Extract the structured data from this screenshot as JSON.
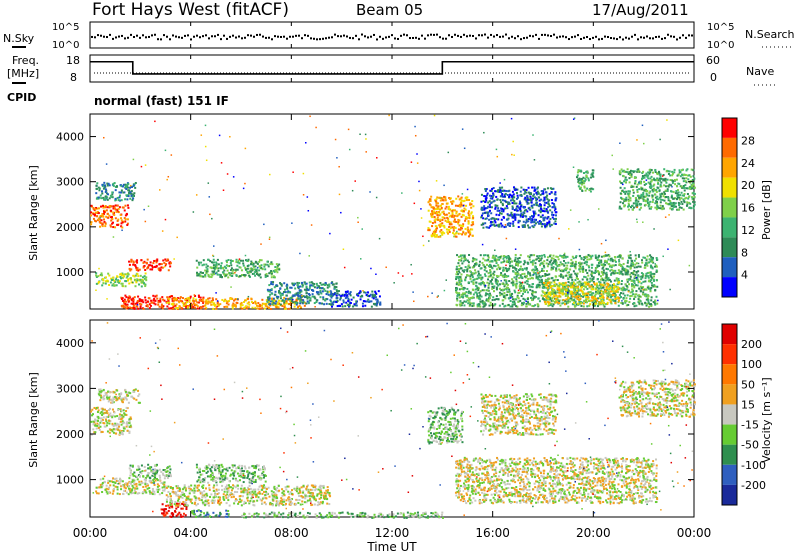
{
  "header": {
    "station": "Fort Hays West (fitACF)",
    "beam": "Beam 05",
    "date": "17/Aug/2011"
  },
  "top_panels": {
    "nsky_label": "N.Sky",
    "nsky_ticks": [
      "10^5",
      "10^0"
    ],
    "nsearch_label": "N.Search",
    "nsearch_ticks": [
      "10^5",
      "10^0"
    ],
    "freq_label": "Freq.",
    "freq_unit": "[MHz]",
    "freq_ticks": [
      "18",
      "8"
    ],
    "nave_label": "Nave",
    "nave_ticks": [
      "60",
      "0"
    ],
    "cpid_label": "CPID",
    "cpid_text": "normal (fast) 151 IF"
  },
  "x_axis": {
    "label": "Time UT",
    "ticks": [
      "00:00",
      "04:00",
      "08:00",
      "12:00",
      "16:00",
      "20:00",
      "00:00"
    ]
  },
  "colors": {
    "power": [
      "#0000ff",
      "#1f5fbf",
      "#2e8b57",
      "#3cb371",
      "#7fd04a",
      "#f0e000",
      "#ffa500",
      "#ff6a00",
      "#ff0000"
    ],
    "velocity": [
      "#1a2a9a",
      "#2f5fbf",
      "#2f8f4f",
      "#66cc33",
      "#c8c8c0",
      "#f0a020",
      "#ff7800",
      "#ff3000",
      "#e00000"
    ]
  },
  "chart_data": [
    {
      "type": "heatmap",
      "name": "power",
      "xlabel": "Time UT",
      "ylabel": "Slant Range [km]",
      "xlim": [
        0,
        24
      ],
      "ylim": [
        180,
        4500
      ],
      "yticks": [
        "4000",
        "3000",
        "2000",
        "1000"
      ],
      "colorbar_label": "Power [dB]",
      "colorbar_ticks": [
        "28",
        "24",
        "20",
        "16",
        "12",
        "8",
        "4"
      ],
      "regions": [
        {
          "t": [
            0,
            1.5
          ],
          "r": [
            2000,
            2500
          ],
          "level": 7
        },
        {
          "t": [
            0.2,
            1.8
          ],
          "r": [
            2600,
            3000
          ],
          "level": 2
        },
        {
          "t": [
            1.5,
            3.2
          ],
          "r": [
            1050,
            1300
          ],
          "level": 8
        },
        {
          "t": [
            1.2,
            4.5
          ],
          "r": [
            200,
            500
          ],
          "level": 8
        },
        {
          "t": [
            0.2,
            2.2
          ],
          "r": [
            700,
            1000
          ],
          "level": 4
        },
        {
          "t": [
            3.0,
            8.5
          ],
          "r": [
            200,
            450
          ],
          "level": 6
        },
        {
          "t": [
            4.2,
            7.5
          ],
          "r": [
            900,
            1300
          ],
          "level": 3
        },
        {
          "t": [
            7.0,
            9.8
          ],
          "r": [
            300,
            800
          ],
          "level": 2
        },
        {
          "t": [
            9.5,
            11.5
          ],
          "r": [
            250,
            600
          ],
          "level": 1
        },
        {
          "t": [
            13.4,
            15.2
          ],
          "r": [
            1800,
            2700
          ],
          "level": 6
        },
        {
          "t": [
            14.5,
            22.5
          ],
          "r": [
            250,
            1400
          ],
          "level": 3
        },
        {
          "t": [
            15.5,
            18.5
          ],
          "r": [
            2000,
            2900
          ],
          "level": 1
        },
        {
          "t": [
            19.3,
            20.0
          ],
          "r": [
            2800,
            3300
          ],
          "level": 3
        },
        {
          "t": [
            21.0,
            24.0
          ],
          "r": [
            2400,
            3300
          ],
          "level": 3
        },
        {
          "t": [
            18.0,
            21.0
          ],
          "r": [
            300,
            800
          ],
          "level": 5
        }
      ]
    },
    {
      "type": "heatmap",
      "name": "velocity",
      "xlabel": "Time UT",
      "ylabel": "Slant Range [km]",
      "xlim": [
        0,
        24
      ],
      "ylim": [
        180,
        4500
      ],
      "yticks": [
        "4000",
        "3000",
        "2000",
        "1000"
      ],
      "colorbar_label": "Velocity [m s⁻¹]",
      "colorbar_ticks": [
        "200",
        "100",
        "50",
        "15",
        "-15",
        "-50",
        "-100",
        "-200"
      ],
      "regions": [
        {
          "t": [
            0,
            1.6
          ],
          "r": [
            2000,
            2600
          ],
          "level": 4
        },
        {
          "t": [
            0.3,
            2.0
          ],
          "r": [
            2700,
            3000
          ],
          "level": 4
        },
        {
          "t": [
            1.5,
            3.2
          ],
          "r": [
            1050,
            1350
          ],
          "level": 3
        },
        {
          "t": [
            0.2,
            3.0
          ],
          "r": [
            700,
            1050
          ],
          "level": 4
        },
        {
          "t": [
            2.8,
            3.8
          ],
          "r": [
            200,
            500
          ],
          "level": 8
        },
        {
          "t": [
            4.0,
            5.5
          ],
          "r": [
            200,
            350
          ],
          "level": 2
        },
        {
          "t": [
            4.2,
            7.0
          ],
          "r": [
            950,
            1350
          ],
          "level": 3
        },
        {
          "t": [
            3.0,
            9.5
          ],
          "r": [
            450,
            900
          ],
          "level": 4
        },
        {
          "t": [
            13.4,
            14.8
          ],
          "r": [
            1800,
            2600
          ],
          "level": 3
        },
        {
          "t": [
            14.5,
            22.5
          ],
          "r": [
            500,
            1500
          ],
          "level": 4
        },
        {
          "t": [
            15.5,
            18.5
          ],
          "r": [
            2000,
            2900
          ],
          "level": 4
        },
        {
          "t": [
            21.0,
            24.0
          ],
          "r": [
            2400,
            3200
          ],
          "level": 4
        },
        {
          "t": [
            6.0,
            14.0
          ],
          "r": [
            180,
            300
          ],
          "level": 3
        }
      ]
    },
    {
      "type": "line",
      "name": "freq",
      "x": [
        0,
        1.7,
        1.7,
        14,
        14,
        24
      ],
      "y": [
        15.5,
        15.5,
        11,
        11,
        15.5,
        15.5
      ],
      "ylim": [
        8,
        18
      ]
    }
  ]
}
